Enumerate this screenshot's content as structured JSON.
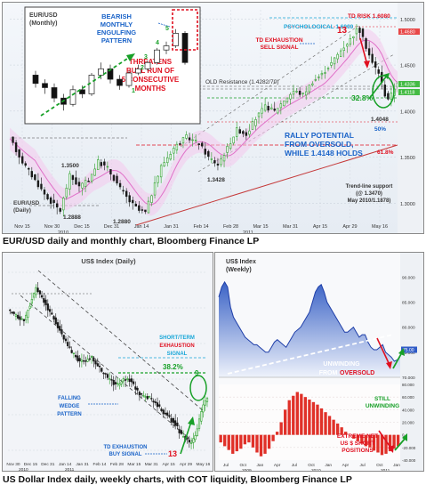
{
  "colors": {
    "bull": "#2aa02a",
    "bear": "#1a1a1a",
    "red_annot": "#e01020",
    "blue_annot": "#1a63c8",
    "cyan_annot": "#1aa7d8",
    "green_annot": "#18a028",
    "pink_ma": "#e070c8",
    "pink_band": "#f4c8ec",
    "area_blue": "#3b63c6",
    "area_bottom": "#eef2fb",
    "cot_red": "#e03028",
    "price_label_red": "#e84848",
    "price_label_green": "#44bb44"
  },
  "top_chart": {
    "corner_label_lines": [
      "EUR/USD",
      "(Daily)"
    ],
    "caption": "EUR/USD daily and monthly chart, Bloomberg Finance LP",
    "inset": {
      "title_lines": [
        "EUR/USD",
        "(Monthly)"
      ],
      "bearish_lines": [
        "BEARISH",
        "MONTHLY",
        "ENGULFING",
        "PATTERN"
      ],
      "threatens_lines": [
        "THREATENS",
        "BULL RUN OF",
        "5 CONSECUTIVE",
        "MONTHS"
      ],
      "counts": [
        "1",
        "2",
        "3",
        "4",
        "5"
      ]
    },
    "annotations": {
      "td_risk": "TD RISK 1.6080",
      "psychological": "PSYCHOLOGICAL 1.6000",
      "td_exhaustion_lines": [
        "TD EXHAUSTION",
        "SELL SIGNAL"
      ],
      "count13": "13",
      "old_resistance": "OLD Resistance (1.4282/70)",
      "pct328": "32.8%",
      "price_14048": "1.4048",
      "pct50": "50%",
      "pct618": "61.8%",
      "rally_lines": [
        "RALLY POTENTIAL",
        "FROM OVERSOLD,",
        "WHILE 1.4148 HOLDS"
      ],
      "price_13500": "1.3500",
      "price_13428": "1.3428",
      "price_12888": "1.2888",
      "price_12880": "1.2880",
      "trend_lines": [
        "Trend-line support",
        "(@ 1.3470)",
        "May 2010/1.1878)"
      ]
    },
    "price_labels": [
      "1.4680",
      "1.4336",
      "1.4118"
    ],
    "y_ticks": [
      "1.5000",
      "1.4500",
      "1.4000",
      "1.3500",
      "1.3000"
    ],
    "x_ticks": [
      "Nov 15",
      "Nov 30",
      "Dec 15",
      "Dec 31",
      "Jan 14",
      "Jan 31",
      "Feb 14",
      "Feb 28",
      "Mar 15",
      "Mar 31",
      "Apr 15",
      "Apr 29",
      "May 16"
    ],
    "x_years": [
      "2010",
      "2011"
    ]
  },
  "bottom_left": {
    "title": "US$ Index (Daily)",
    "annotations": {
      "short_term_lines": [
        "SHORT/TERM",
        "EXHAUSTION",
        "SIGNAL"
      ],
      "pct382": "38.2%",
      "count9": "9",
      "falling_wedge_lines": [
        "FALLING",
        "WEDGE",
        "PATTERN"
      ],
      "td_buy_lines": [
        "TD EXHAUSTION",
        "BUY SIGNAL"
      ],
      "count13": "13"
    },
    "x_ticks": [
      "Nov 30",
      "Dec 15",
      "Dec 31",
      "Jan 14",
      "Jan 31",
      "Feb 14",
      "Feb 28",
      "Mar 15",
      "Mar 31",
      "Apr 15",
      "Apr 29",
      "May 16"
    ],
    "x_years": [
      "2010",
      "2011"
    ]
  },
  "bottom_right": {
    "title_lines": [
      "US$ Index",
      "(Weekly)"
    ],
    "unwinding_lines": [
      "UNWINDING",
      "FROM"
    ],
    "oversold": "OVERSOLD",
    "still_lines": [
      "STILL",
      "UNWINDING"
    ],
    "extreme_lines": [
      "EXTREME NET",
      "US $ SHORT",
      "POSITIONS"
    ],
    "price_label": "75.00",
    "y_ticks_top": [
      "90.000",
      "85.000",
      "80.000",
      "75.000",
      "70.000"
    ],
    "y_ticks_bottom": [
      "80.000",
      "60.000",
      "40.000",
      "20.000",
      "0",
      "-20.000",
      "-40.000"
    ],
    "x_ticks": [
      "Jul",
      "Oct",
      "Jan",
      "Apr",
      "Jul",
      "Oct",
      "Jan",
      "Apr",
      "Jul",
      "Oct",
      "Jan"
    ],
    "x_years": [
      "2009",
      "2010",
      "2011"
    ]
  },
  "bottom_caption": "US Dollar Index daily, weekly charts, with COT liquidity, Bloomberg Finance LP",
  "chart_data": [
    {
      "type": "candlestick",
      "title": "EUR/USD (Daily)",
      "y_range": [
        1.28,
        1.51
      ],
      "key_levels": {
        "td_risk": 1.608,
        "psychological": 1.6,
        "old_resistance_high": 1.4282,
        "low_may": 1.4048,
        "support": 1.4148,
        "lows": [
          1.3428,
          1.2888,
          1.288
        ],
        "high_2010": 1.35
      },
      "path": [
        [
          0,
          1.37
        ],
        [
          4,
          1.345
        ],
        [
          8,
          1.325
        ],
        [
          12,
          1.305
        ],
        [
          16,
          1.292
        ],
        [
          19,
          1.33
        ],
        [
          22,
          1.318
        ],
        [
          25,
          1.325
        ],
        [
          28,
          1.345
        ],
        [
          31,
          1.338
        ],
        [
          35,
          1.316
        ],
        [
          38,
          1.302
        ],
        [
          41,
          1.292
        ],
        [
          43,
          1.29
        ],
        [
          45,
          1.31
        ],
        [
          48,
          1.34
        ],
        [
          52,
          1.36
        ],
        [
          56,
          1.372
        ],
        [
          60,
          1.365
        ],
        [
          63,
          1.35
        ],
        [
          66,
          1.342
        ],
        [
          69,
          1.36
        ],
        [
          72,
          1.38
        ],
        [
          75,
          1.375
        ],
        [
          78,
          1.392
        ],
        [
          81,
          1.405
        ],
        [
          84,
          1.4
        ],
        [
          87,
          1.412
        ],
        [
          90,
          1.422
        ],
        [
          93,
          1.418
        ],
        [
          96,
          1.432
        ],
        [
          99,
          1.44
        ],
        [
          102,
          1.452
        ],
        [
          105,
          1.466
        ],
        [
          108,
          1.478
        ],
        [
          110,
          1.488
        ],
        [
          111,
          1.487
        ],
        [
          113,
          1.47
        ],
        [
          115,
          1.452
        ],
        [
          117,
          1.442
        ],
        [
          118,
          1.43
        ],
        [
          119,
          1.418
        ],
        [
          120,
          1.414
        ],
        [
          121,
          1.418
        ],
        [
          122,
          1.425
        ],
        [
          123,
          1.432
        ]
      ]
    },
    {
      "type": "candlestick",
      "title": "EUR/USD (Monthly)",
      "candles": [
        [
          1.36,
          1.32,
          1.38,
          1.3
        ],
        [
          1.32,
          1.3,
          1.34,
          1.27
        ],
        [
          1.3,
          1.25,
          1.32,
          1.23
        ],
        [
          1.25,
          1.22,
          1.27,
          1.19
        ],
        [
          1.22,
          1.29,
          1.31,
          1.21
        ],
        [
          1.29,
          1.27,
          1.31,
          1.25
        ],
        [
          1.27,
          1.36,
          1.37,
          1.26
        ],
        [
          1.36,
          1.39,
          1.42,
          1.34
        ],
        [
          1.39,
          1.34,
          1.41,
          1.32
        ],
        [
          1.34,
          1.31,
          1.36,
          1.29
        ],
        [
          1.31,
          1.37,
          1.38,
          1.3
        ],
        [
          1.37,
          1.39,
          1.41,
          1.36
        ],
        [
          1.39,
          1.42,
          1.43,
          1.38
        ],
        [
          1.42,
          1.48,
          1.49,
          1.41
        ],
        [
          1.48,
          1.5,
          1.52,
          1.46
        ],
        [
          1.5,
          1.56,
          1.58,
          1.49
        ],
        [
          1.56,
          1.42,
          1.57,
          1.41
        ]
      ]
    },
    {
      "type": "candlestick",
      "title": "US$ Index (Daily)",
      "fibonacci": {
        "level": 0.382
      },
      "path": [
        [
          0,
          80
        ],
        [
          8,
          79.5
        ],
        [
          14,
          81.2
        ],
        [
          18,
          80.5
        ],
        [
          24,
          79.4
        ],
        [
          30,
          78.2
        ],
        [
          36,
          77.4
        ],
        [
          42,
          77.6
        ],
        [
          48,
          76.8
        ],
        [
          54,
          76.2
        ],
        [
          60,
          76.6
        ],
        [
          66,
          75.8
        ],
        [
          72,
          75.5
        ],
        [
          78,
          74.8
        ],
        [
          84,
          74.2
        ],
        [
          88,
          73.5
        ],
        [
          92,
          73.2
        ],
        [
          94,
          73.6
        ],
        [
          96,
          74.4
        ],
        [
          98,
          75.2
        ],
        [
          100,
          75.5
        ]
      ]
    },
    {
      "type": "area",
      "title": "US$ Index (Weekly)",
      "series": [
        {
          "values": [
            86,
            88,
            89,
            88,
            84,
            82,
            81,
            80,
            79,
            78,
            77.5,
            77,
            76.5,
            76.5,
            76,
            75.5,
            75,
            75,
            76,
            77,
            77.5,
            77,
            76.5,
            76,
            77,
            78,
            79,
            79.5,
            80,
            81,
            82,
            83,
            85,
            87,
            88,
            88.5,
            87,
            85,
            84,
            83,
            82,
            81,
            80,
            79,
            79,
            79.5,
            80,
            79,
            78,
            78.5,
            78.5,
            77,
            76,
            75.5,
            75.5,
            76,
            76.5,
            75,
            74.5,
            74,
            73.2,
            73.5,
            74.2
          ]
        }
      ]
    },
    {
      "type": "bar",
      "title": "Net US$ positions (COT)",
      "series": [
        {
          "values": [
            -12,
            -18,
            -24,
            -30,
            -26,
            -22,
            -15,
            -12,
            -20,
            -28,
            -34,
            -30,
            -22,
            -10,
            5,
            20,
            40,
            55,
            62,
            68,
            65,
            60,
            56,
            52,
            48,
            42,
            36,
            30,
            24,
            18,
            12,
            5,
            0,
            -6,
            -10,
            -14,
            -18,
            -20,
            -25,
            -28,
            -32,
            -30,
            -26,
            -22,
            -18
          ]
        }
      ]
    }
  ]
}
